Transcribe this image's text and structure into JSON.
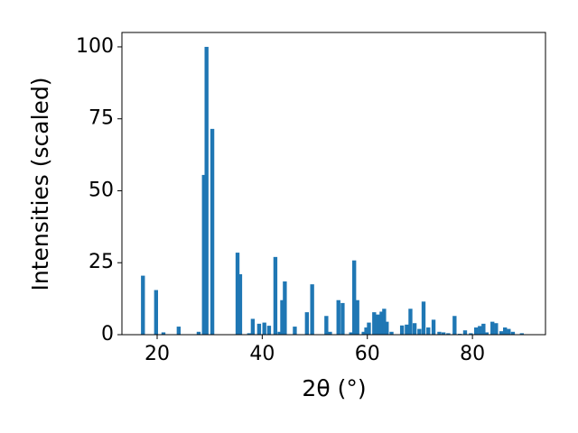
{
  "chart_data": {
    "type": "bar",
    "xlabel": "2θ (°)",
    "ylabel": "Intensities (scaled)",
    "x": [
      17.3,
      19.8,
      21.2,
      24.1,
      27.9,
      28.9,
      29.4,
      30.5,
      35.3,
      35.8,
      37.5,
      38.2,
      39.4,
      40.4,
      41.3,
      42.5,
      43.3,
      43.8,
      44.3,
      46.2,
      48.5,
      49.5,
      52.2,
      52.9,
      54.5,
      55.3,
      56.9,
      57.5,
      58.1,
      59.3,
      59.8,
      60.3,
      61.3,
      62.0,
      62.7,
      63.2,
      63.7,
      64.6,
      66.6,
      67.5,
      68.2,
      69.0,
      69.9,
      70.7,
      71.6,
      72.6,
      73.7,
      74.5,
      75.4,
      76.6,
      77.6,
      78.6,
      79.7,
      80.7,
      81.4,
      82.1,
      82.7,
      83.8,
      84.5,
      85.5,
      86.2,
      86.9,
      87.7,
      89.4
    ],
    "values": [
      20.5,
      15.5,
      0.8,
      2.8,
      1,
      55.5,
      100,
      71.5,
      28.5,
      21,
      0.5,
      5.5,
      3.8,
      4.2,
      3.1,
      27,
      1,
      12,
      18.5,
      2.8,
      7.8,
      17.5,
      6.5,
      1,
      12,
      11,
      0.8,
      25.8,
      12,
      1,
      2.5,
      4.2,
      7.8,
      7,
      8,
      9,
      4.5,
      1,
      3.2,
      3.5,
      9,
      4,
      2,
      11.5,
      2.5,
      5.2,
      1,
      0.8,
      0.5,
      6.5,
      0.3,
      1.5,
      0.5,
      2.5,
      3,
      3.8,
      0.8,
      4.5,
      4,
      1.2,
      2.5,
      2,
      1,
      0.5
    ],
    "color": "#1f77b4",
    "xlim": [
      13.3,
      93.9
    ],
    "xticks": [
      20,
      40,
      60,
      80
    ],
    "ylim": [
      0,
      105
    ],
    "yticks": [
      0,
      25,
      50,
      75,
      100
    ]
  }
}
